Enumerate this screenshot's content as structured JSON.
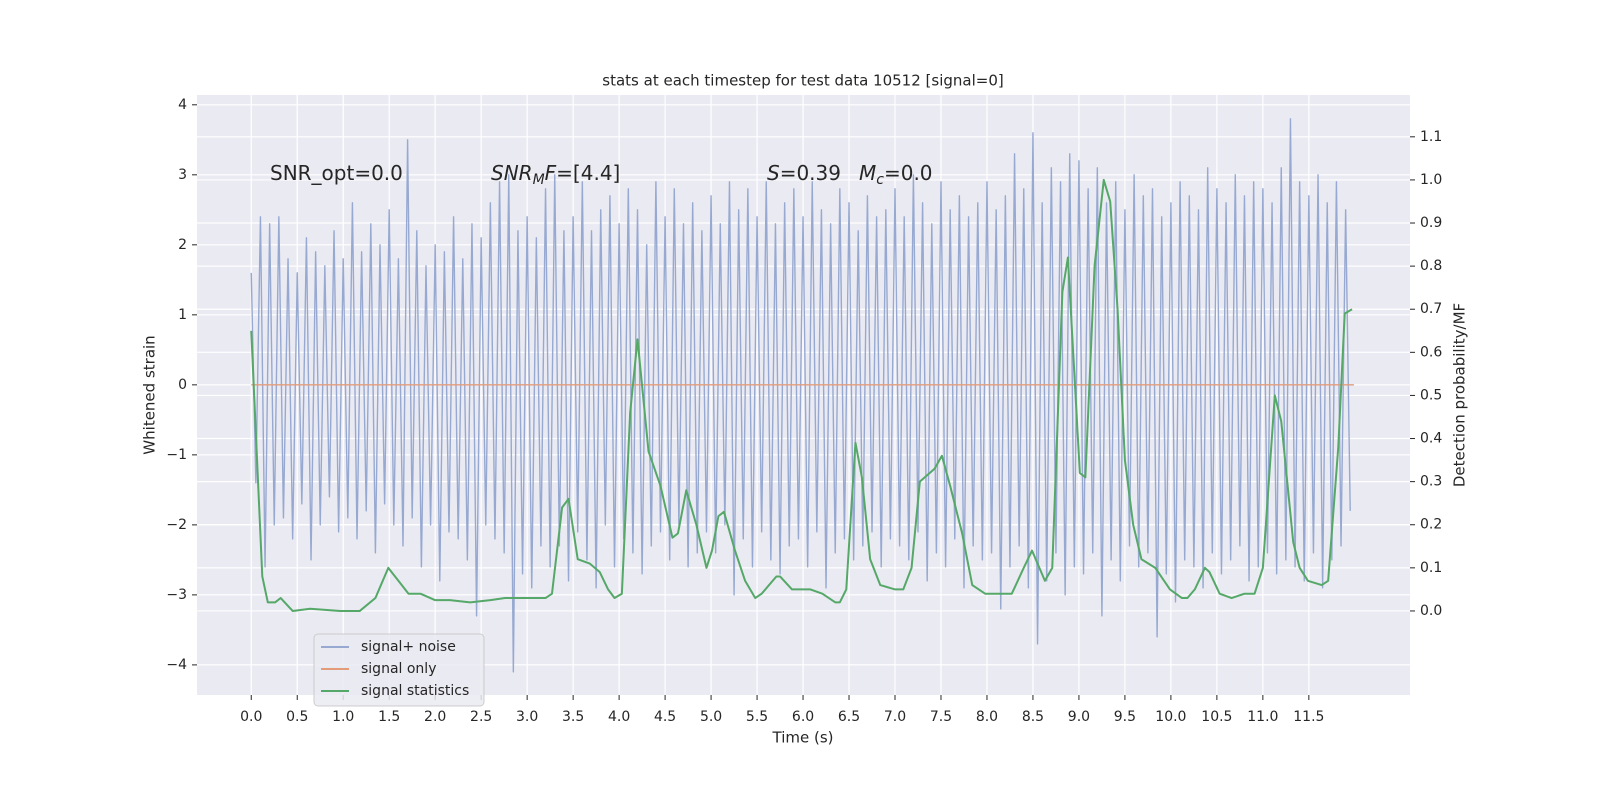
{
  "chart_data": {
    "type": "line",
    "title": "stats at each timestep for test data 10512 [signal=0]",
    "xlabel": "Time (s)",
    "ylabel": "Whitened strain",
    "y2label": "Detection probability/MF",
    "grid": true,
    "legend": "lower left",
    "xlim": [
      -0.59,
      12.6
    ],
    "ylim": [
      -4.43,
      4.14
    ],
    "y2lim": [
      -0.195,
      1.197
    ],
    "xticks": [
      {
        "value": 0,
        "label": "0.0"
      },
      0.5,
      {
        "value": 1,
        "label": "1.0"
      },
      1.5,
      {
        "value": 2,
        "label": "2.0"
      },
      2.5,
      {
        "value": 3,
        "label": "3.0"
      },
      3.5,
      {
        "value": 4,
        "label": "4.0"
      },
      4.5,
      {
        "value": 5,
        "label": "5.0"
      },
      5.5,
      {
        "value": 6,
        "label": "6.0"
      },
      6.5,
      {
        "value": 7,
        "label": "7.0"
      },
      7.5,
      {
        "value": 8,
        "label": "8.0"
      },
      8.5,
      {
        "value": 9,
        "label": "9.0"
      },
      9.5,
      {
        "value": 10,
        "label": "10.0"
      },
      10.5,
      {
        "value": 11,
        "label": "11.0"
      },
      11.5
    ],
    "yticks": [
      {
        "value": -4,
        "label": "−4"
      },
      {
        "value": -3,
        "label": "−3"
      },
      {
        "value": -2,
        "label": "−2"
      },
      {
        "value": -1,
        "label": "−1"
      },
      0,
      1,
      2,
      3,
      4
    ],
    "y2ticks": [
      {
        "value": 0,
        "label": "0.0"
      },
      0.1,
      0.2,
      0.3,
      0.4,
      0.5,
      0.6,
      0.7,
      0.8,
      0.9,
      {
        "value": 1,
        "label": "1.0"
      },
      1.1
    ],
    "annotations": [
      [
        {
          "text": "SNR_opt=0.0"
        }
      ],
      [
        {
          "text": "SNR",
          "italic": true
        },
        {
          "text": "M",
          "italic": true,
          "sub": true
        },
        {
          "text": "F",
          "italic": true
        },
        {
          "text": "=[4.4]"
        }
      ],
      [
        {
          "text": "S",
          "italic": true
        },
        {
          "text": "=0.39"
        }
      ],
      [
        {
          "text": "M",
          "italic": true
        },
        {
          "text": "c",
          "italic": true,
          "sub": true
        },
        {
          "text": "=0.0"
        }
      ]
    ],
    "series": [
      {
        "name": "signal+ noise",
        "color": "#97a9d1",
        "x": [
          0,
          0.05,
          0.1,
          0.15,
          0.2,
          0.25,
          0.3,
          0.35,
          0.4,
          0.45,
          0.5,
          0.55,
          0.6,
          0.65,
          0.7,
          0.75,
          0.8,
          0.85,
          0.9,
          0.95,
          1,
          1.05,
          1.1,
          1.15,
          1.2,
          1.25,
          1.3,
          1.35,
          1.4,
          1.45,
          1.5,
          1.55,
          1.6,
          1.65,
          1.7,
          1.75,
          1.8,
          1.85,
          1.9,
          1.95,
          2,
          2.05,
          2.1,
          2.15,
          2.2,
          2.25,
          2.3,
          2.35,
          2.4,
          2.45,
          2.5,
          2.55,
          2.6,
          2.65,
          2.7,
          2.75,
          2.8,
          2.85,
          2.9,
          2.95,
          3,
          3.05,
          3.1,
          3.15,
          3.2,
          3.25,
          3.3,
          3.35,
          3.4,
          3.45,
          3.5,
          3.55,
          3.6,
          3.65,
          3.7,
          3.75,
          3.8,
          3.85,
          3.9,
          3.95,
          4,
          4.05,
          4.1,
          4.15,
          4.2,
          4.25,
          4.3,
          4.35,
          4.4,
          4.45,
          4.5,
          4.55,
          4.6,
          4.65,
          4.7,
          4.75,
          4.8,
          4.85,
          4.9,
          4.95,
          5,
          5.05,
          5.1,
          5.15,
          5.2,
          5.25,
          5.3,
          5.35,
          5.4,
          5.45,
          5.5,
          5.55,
          5.6,
          5.65,
          5.7,
          5.75,
          5.8,
          5.85,
          5.9,
          5.95,
          6,
          6.05,
          6.1,
          6.15,
          6.2,
          6.25,
          6.3,
          6.35,
          6.4,
          6.45,
          6.5,
          6.55,
          6.6,
          6.65,
          6.7,
          6.75,
          6.8,
          6.85,
          6.9,
          6.95,
          7,
          7.05,
          7.1,
          7.15,
          7.2,
          7.25,
          7.3,
          7.35,
          7.4,
          7.45,
          7.5,
          7.55,
          7.6,
          7.65,
          7.7,
          7.75,
          7.8,
          7.85,
          7.9,
          7.95,
          8,
          8.05,
          8.1,
          8.15,
          8.2,
          8.25,
          8.3,
          8.35,
          8.4,
          8.45,
          8.5,
          8.55,
          8.6,
          8.65,
          8.7,
          8.75,
          8.8,
          8.85,
          8.9,
          8.95,
          9,
          9.05,
          9.1,
          9.15,
          9.2,
          9.25,
          9.3,
          9.35,
          9.4,
          9.45,
          9.5,
          9.55,
          9.6,
          9.65,
          9.7,
          9.75,
          9.8,
          9.85,
          9.9,
          9.95,
          10,
          10.05,
          10.1,
          10.15,
          10.2,
          10.25,
          10.3,
          10.35,
          10.4,
          10.45,
          10.5,
          10.55,
          10.6,
          10.65,
          10.7,
          10.75,
          10.8,
          10.85,
          10.9,
          10.95,
          11,
          11.05,
          11.1,
          11.15,
          11.2,
          11.25,
          11.3,
          11.35,
          11.4,
          11.45,
          11.5,
          11.55,
          11.6,
          11.65,
          11.7,
          11.75,
          11.8,
          11.85,
          11.9,
          11.95
        ],
        "values": [
          1.6,
          -1.4,
          2.4,
          -2.6,
          2.3,
          -2.0,
          2.4,
          -1.9,
          1.8,
          -2.2,
          1.6,
          -1.7,
          2.1,
          -2.5,
          1.9,
          -2.0,
          1.7,
          -1.6,
          2.2,
          -2.1,
          1.8,
          -1.9,
          2.6,
          -2.2,
          1.9,
          -1.8,
          2.3,
          -2.4,
          2.0,
          -1.7,
          2.5,
          -2.0,
          1.8,
          -2.3,
          3.5,
          -1.9,
          2.2,
          -2.6,
          1.7,
          -2.0,
          2.0,
          -2.8,
          1.9,
          -2.1,
          2.4,
          -2.2,
          1.8,
          -2.5,
          2.3,
          -3.3,
          2.1,
          -2.0,
          2.6,
          -2.2,
          2.9,
          -2.4,
          3.0,
          -4.1,
          2.2,
          -2.7,
          2.4,
          -2.9,
          2.1,
          -2.3,
          2.8,
          -2.6,
          3.0,
          -2.3,
          2.2,
          -2.8,
          2.4,
          -2.1,
          2.9,
          -2.5,
          2.2,
          -2.9,
          2.5,
          -2.0,
          2.7,
          -2.6,
          2.3,
          -2.2,
          2.8,
          -2.4,
          2.5,
          -2.7,
          2.0,
          -2.3,
          2.9,
          -2.1,
          2.4,
          -2.5,
          2.8,
          -2.0,
          2.3,
          -2.6,
          2.6,
          -2.4,
          2.2,
          -2.1,
          2.7,
          -2.4,
          2.3,
          -2.0,
          2.9,
          -3.0,
          2.5,
          -2.2,
          2.8,
          -2.6,
          2.4,
          -2.1,
          2.9,
          -2.5,
          2.3,
          -2.7,
          2.6,
          -2.3,
          2.8,
          -2.2,
          2.4,
          -2.6,
          2.9,
          -2.1,
          2.5,
          -2.9,
          2.3,
          -2.4,
          2.8,
          -2.2,
          2.6,
          -2.5,
          2.2,
          -2.3,
          2.7,
          -2.1,
          2.4,
          -2.6,
          2.5,
          -2.2,
          2.8,
          -2.3,
          2.4,
          -2.5,
          3.0,
          -2.1,
          2.6,
          -2.8,
          2.3,
          -2.4,
          2.9,
          -2.6,
          2.5,
          -2.2,
          2.7,
          -2.9,
          2.4,
          -2.3,
          2.6,
          -2.5,
          2.9,
          -2.4,
          2.5,
          -3.2,
          2.7,
          -2.6,
          3.3,
          -2.3,
          2.8,
          -2.9,
          3.6,
          -3.7,
          2.6,
          -2.8,
          3.1,
          -2.4,
          2.9,
          -3.0,
          3.3,
          -2.6,
          3.2,
          -2.7,
          2.8,
          -2.4,
          3.1,
          -3.3,
          2.6,
          -2.5,
          2.9,
          -2.8,
          2.5,
          -2.3,
          3.0,
          -2.6,
          2.7,
          -2.4,
          2.8,
          -3.6,
          2.4,
          -2.7,
          2.6,
          -3.1,
          2.9,
          -2.5,
          2.7,
          -2.6,
          2.5,
          -2.9,
          3.1,
          -2.4,
          2.8,
          -2.7,
          2.6,
          -2.5,
          3.0,
          -2.3,
          2.7,
          -2.8,
          2.9,
          -2.6,
          2.8,
          -2.4,
          2.6,
          -2.7,
          3.1,
          -2.5,
          3.8,
          -2.6,
          2.9,
          -2.8,
          2.7,
          -2.4,
          3.0,
          -2.9,
          2.6,
          -2.5,
          2.9,
          -2.3,
          2.5,
          -1.8
        ]
      },
      {
        "name": "signal only",
        "color": "#e39c7a",
        "x": [
          0,
          11.99
        ],
        "values": [
          0,
          0
        ]
      },
      {
        "name": "signal statistics",
        "color": "#55a868",
        "axis": "y2",
        "x": [
          0,
          0.12,
          0.18,
          0.26,
          0.32,
          0.45,
          0.64,
          0.97,
          1.18,
          1.35,
          1.49,
          1.6,
          1.71,
          1.84,
          2.0,
          2.16,
          2.38,
          2.6,
          2.76,
          2.92,
          3.2,
          3.27,
          3.38,
          3.45,
          3.55,
          3.68,
          3.79,
          3.88,
          3.95,
          4.03,
          4.12,
          4.2,
          4.32,
          4.45,
          4.58,
          4.64,
          4.73,
          4.84,
          4.95,
          5.01,
          5.08,
          5.14,
          5.26,
          5.37,
          5.48,
          5.55,
          5.71,
          5.75,
          5.88,
          5.97,
          6.08,
          6.21,
          6.35,
          6.4,
          6.47,
          6.57,
          6.64,
          6.73,
          6.84,
          7.0,
          7.09,
          7.18,
          7.27,
          7.43,
          7.51,
          7.6,
          7.73,
          7.84,
          7.98,
          8.14,
          8.27,
          8.4,
          8.49,
          8.63,
          8.71,
          8.82,
          8.88,
          9.01,
          9.07,
          9.17,
          9.27,
          9.34,
          9.42,
          9.5,
          9.59,
          9.68,
          9.83,
          9.99,
          10.12,
          10.18,
          10.26,
          10.37,
          10.42,
          10.53,
          10.66,
          10.8,
          10.91,
          11.0,
          11.13,
          11.2,
          11.33,
          11.4,
          11.49,
          11.64,
          11.71,
          11.82,
          11.89,
          11.97
        ],
        "values": [
          0.65,
          0.08,
          0.02,
          0.02,
          0.03,
          0.0,
          0.005,
          0.0,
          0.0,
          0.03,
          0.1,
          0.07,
          0.04,
          0.04,
          0.025,
          0.025,
          0.02,
          0.025,
          0.03,
          0.03,
          0.03,
          0.04,
          0.24,
          0.26,
          0.12,
          0.11,
          0.09,
          0.05,
          0.03,
          0.04,
          0.46,
          0.63,
          0.37,
          0.29,
          0.17,
          0.18,
          0.28,
          0.2,
          0.1,
          0.14,
          0.22,
          0.23,
          0.14,
          0.07,
          0.03,
          0.04,
          0.08,
          0.08,
          0.05,
          0.05,
          0.05,
          0.04,
          0.02,
          0.02,
          0.05,
          0.39,
          0.31,
          0.12,
          0.06,
          0.05,
          0.05,
          0.1,
          0.3,
          0.33,
          0.36,
          0.29,
          0.18,
          0.06,
          0.04,
          0.04,
          0.04,
          0.1,
          0.14,
          0.07,
          0.1,
          0.74,
          0.82,
          0.32,
          0.31,
          0.8,
          1.0,
          0.95,
          0.7,
          0.35,
          0.2,
          0.12,
          0.1,
          0.05,
          0.03,
          0.03,
          0.05,
          0.1,
          0.09,
          0.04,
          0.03,
          0.04,
          0.04,
          0.1,
          0.5,
          0.44,
          0.16,
          0.1,
          0.07,
          0.06,
          0.07,
          0.38,
          0.69,
          0.7
        ]
      }
    ]
  }
}
